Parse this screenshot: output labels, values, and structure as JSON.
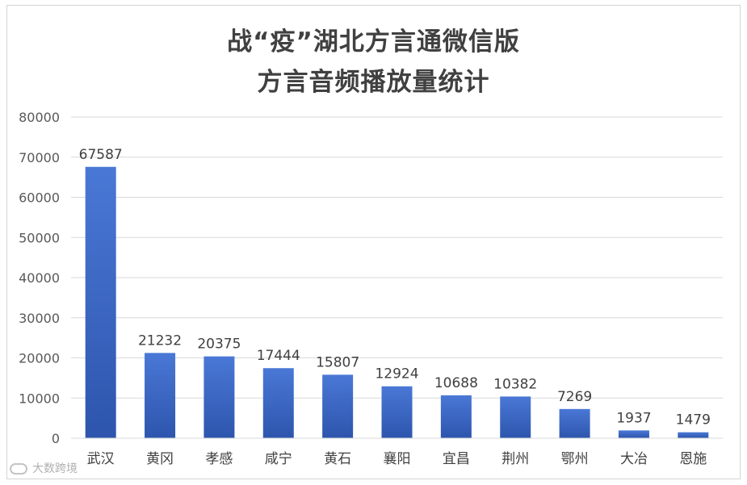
{
  "chart_data": {
    "type": "bar",
    "title_line1": "战“疫”湖北方言通微信版",
    "title_line2": "方言音频播放量统计",
    "categories": [
      "武汉",
      "黄冈",
      "孝感",
      "咸宁",
      "黄石",
      "襄阳",
      "宜昌",
      "荆州",
      "鄂州",
      "大冶",
      "恩施"
    ],
    "values": [
      67587,
      21232,
      20375,
      17444,
      15807,
      12924,
      10688,
      10382,
      7269,
      1937,
      1479
    ],
    "y_ticks": [
      "0",
      "10000",
      "20000",
      "30000",
      "40000",
      "50000",
      "60000",
      "70000",
      "80000"
    ],
    "ylim": [
      0,
      80000
    ],
    "grid": true,
    "bar_color_top": "#4a78d6",
    "bar_color_bottom": "#2d55ad"
  },
  "watermark": {
    "text": "大数跨境"
  }
}
